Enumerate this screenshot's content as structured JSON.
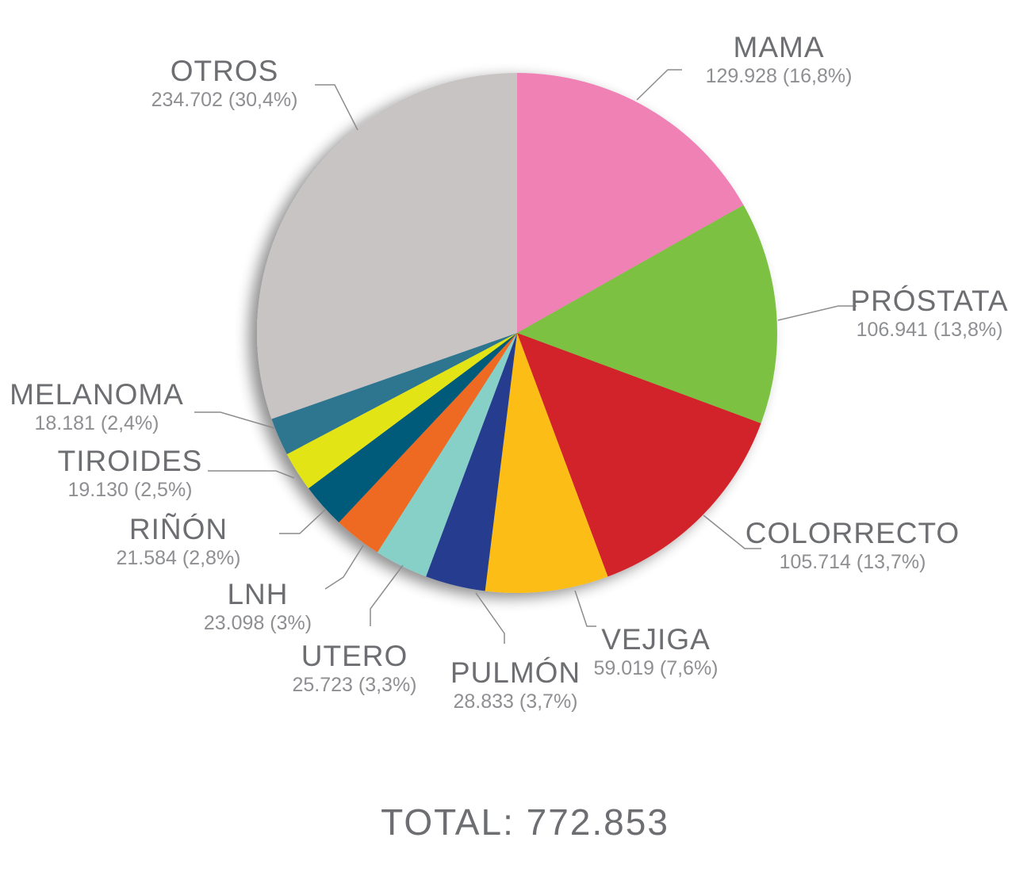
{
  "chart_data": {
    "type": "pie",
    "categories": [
      "MAMA",
      "PRÓSTATA",
      "COLORRECTO",
      "VEJIGA",
      "PULMÓN",
      "UTERO",
      "LNH",
      "RIÑÓN",
      "TIROIDES",
      "MELANOMA",
      "OTROS"
    ],
    "values": [
      129928,
      106941,
      105714,
      59019,
      28833,
      25723,
      23098,
      21584,
      19130,
      18181,
      234702
    ],
    "slices": [
      {
        "name": "MAMA",
        "value": 129928,
        "value_label": "129.928 (16,8%)",
        "color": "#f081b4"
      },
      {
        "name": "PRÓSTATA",
        "value": 106941,
        "value_label": "106.941 (13,8%)",
        "color": "#7dc142"
      },
      {
        "name": "COLORRECTO",
        "value": 105714,
        "value_label": "105.714 (13,7%)",
        "color": "#d2232a"
      },
      {
        "name": "VEJIGA",
        "value": 59019,
        "value_label": "59.019 (7,6%)",
        "color": "#fbbd16"
      },
      {
        "name": "PULMÓN",
        "value": 28833,
        "value_label": "28.833 (3,7%)",
        "color": "#253e8f"
      },
      {
        "name": "UTERO",
        "value": 25723,
        "value_label": "25.723 (3,3%)",
        "color": "#86d0c8"
      },
      {
        "name": "LNH",
        "value": 23098,
        "value_label": "23.098 (3%)",
        "color": "#ee6b22"
      },
      {
        "name": "RIÑÓN",
        "value": 21584,
        "value_label": "21.584 (2,8%)",
        "color": "#005a7a"
      },
      {
        "name": "TIROIDES",
        "value": 19130,
        "value_label": "19.130 (2,5%)",
        "color": "#e3e418"
      },
      {
        "name": "MELANOMA",
        "value": 18181,
        "value_label": "18.181 (2,4%)",
        "color": "#2f7690"
      },
      {
        "name": "OTROS",
        "value": 234702,
        "value_label": "234.702 (30,4%)",
        "color": "#c8c4c4"
      }
    ],
    "start": "12 o'clock",
    "direction": "clockwise",
    "legend": "none",
    "total_label": "TOTAL: 772.853"
  }
}
